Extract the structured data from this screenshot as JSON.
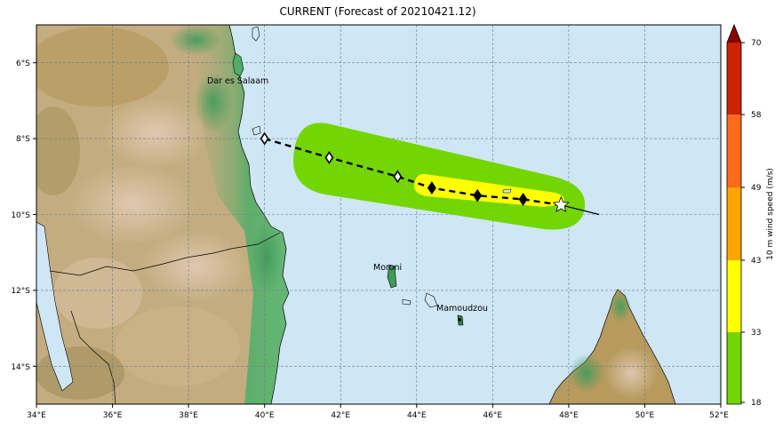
{
  "title": "CURRENT (Forecast of 20210421.12)",
  "map": {
    "lon_range": [
      34,
      52
    ],
    "lat_range": [
      -15,
      -5
    ],
    "x_ticks": [
      "34°E",
      "36°E",
      "38°E",
      "40°E",
      "42°E",
      "44°E",
      "46°E",
      "48°E",
      "50°E",
      "52°E"
    ],
    "y_ticks": [
      "6°S",
      "8°S",
      "10°S",
      "12°S",
      "14°S"
    ],
    "grid": true,
    "places": [
      {
        "name": "Dar es Salaam",
        "lon": 39.28,
        "lat": -6.8
      },
      {
        "name": "Moroni",
        "lon": 43.26,
        "lat": -11.7
      },
      {
        "name": "Mamoudzou",
        "lon": 45.23,
        "lat": -12.78
      }
    ],
    "track": {
      "points": [
        {
          "lon": 40.0,
          "lat": -8.0,
          "style": "open"
        },
        {
          "lon": 41.7,
          "lat": -8.5,
          "style": "open"
        },
        {
          "lon": 43.5,
          "lat": -9.0,
          "style": "open"
        },
        {
          "lon": 44.4,
          "lat": -9.3,
          "style": "filled"
        },
        {
          "lon": 45.6,
          "lat": -9.5,
          "style": "filled"
        },
        {
          "lon": 46.8,
          "lat": -9.6,
          "style": "filled"
        }
      ],
      "current_position": {
        "lon": 47.8,
        "lat": -9.75,
        "symbol": "star"
      },
      "past_track_end": {
        "lon": 48.8,
        "lat": -10.0
      }
    },
    "colors": {
      "ocean": "#cfe6f5",
      "land_low": "#c8b48a",
      "land_high": "#3f9b5a",
      "wind_18_33": "#73d600",
      "wind_33_43": "#ffff00"
    }
  },
  "colorbar": {
    "label": "10 m wind speed (m/s)",
    "ticks": [
      "18",
      "33",
      "43",
      "49",
      "58",
      "70"
    ],
    "bins": [
      {
        "from": 18,
        "to": 33,
        "color": "#73d600"
      },
      {
        "from": 33,
        "to": 43,
        "color": "#ffff00"
      },
      {
        "from": 43,
        "to": 49,
        "color": "#ffa500"
      },
      {
        "from": 49,
        "to": 58,
        "color": "#ff6a1a"
      },
      {
        "from": 58,
        "to": 70,
        "color": "#cc2200"
      }
    ],
    "extend_color": "#8b0000"
  }
}
